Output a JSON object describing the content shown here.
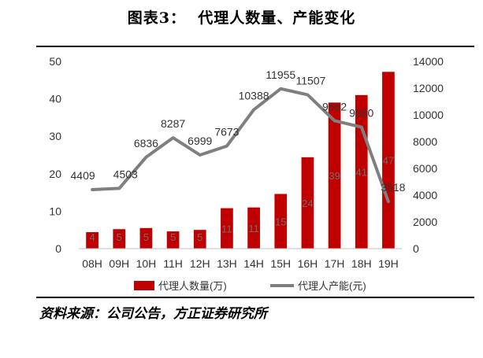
{
  "figure": {
    "title": "图表3：  代理人数量、产能变化",
    "source": "资料来源：公司公告，方正证券研究所"
  },
  "chart_data": {
    "type": "bar",
    "categories": [
      "08H",
      "09H",
      "10H",
      "11H",
      "12H",
      "13H",
      "14H",
      "15H",
      "16H",
      "17H",
      "18H",
      "19H"
    ],
    "series": [
      {
        "name": "代理人数量(万)",
        "type": "bar",
        "axis": "left",
        "color": "#c00000",
        "values": [
          4.4,
          5.2,
          5.5,
          4.6,
          5.0,
          10.8,
          11.0,
          14.6,
          24.4,
          39.0,
          41.0,
          47.2
        ],
        "labels": [
          "4",
          "5",
          "5",
          "5",
          "5",
          "11",
          "11",
          "15",
          "24",
          "39",
          "41",
          "47"
        ]
      },
      {
        "name": "代理人产能(元)",
        "type": "line",
        "axis": "right",
        "color": "#7f7f7f",
        "values": [
          4409,
          4503,
          6836,
          8287,
          6999,
          7673,
          10388,
          11955,
          11507,
          9562,
          9080,
          3518
        ],
        "labels": [
          "4409",
          "4503",
          "6836",
          "8287",
          "6999",
          "7673",
          "10388",
          "11955",
          "11507",
          "9562",
          "9080",
          "3518"
        ]
      }
    ],
    "y_left": {
      "ylim": [
        0,
        50
      ],
      "ticks": [
        "0",
        "10",
        "20",
        "30",
        "40",
        "50"
      ]
    },
    "y_right": {
      "ylim": [
        0,
        14000
      ],
      "ticks": [
        "0",
        "2000",
        "4000",
        "6000",
        "8000",
        "10000",
        "12000",
        "14000"
      ]
    },
    "grid": false,
    "legend": "bottom"
  }
}
